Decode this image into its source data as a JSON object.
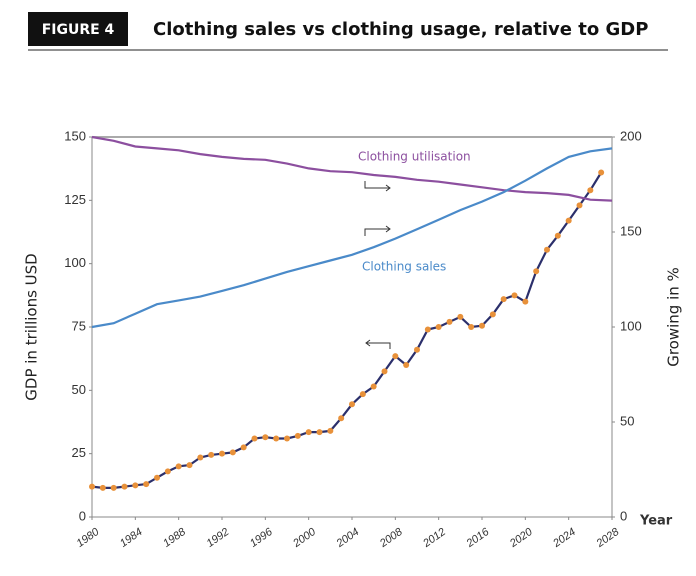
{
  "chart_data": {
    "type": "line",
    "label": "FIGURE 4",
    "title": "Clothing sales vs clothing usage, relative to GDP",
    "xlabel": "Year",
    "ylabel": "GDP in trillions USD",
    "y2label": "Growing in %",
    "xlim": [
      1980,
      2028
    ],
    "xticks": [
      1980,
      1984,
      1988,
      1992,
      1996,
      2000,
      2004,
      2008,
      2012,
      2016,
      2020,
      2024,
      2028
    ],
    "ylim": [
      0,
      150
    ],
    "yticks": [
      0,
      25,
      50,
      75,
      100,
      125,
      150
    ],
    "y2lim": [
      0,
      200
    ],
    "y2ticks": [
      0,
      50,
      100,
      150,
      200
    ],
    "series": [
      {
        "color": "#2b2f6b",
        "marker_color": "#e8913a",
        "x": [
          1980,
          1981,
          1982,
          1983,
          1984,
          1985,
          1986,
          1987,
          1988,
          1989,
          1990,
          1991,
          1992,
          1993,
          1994,
          1995,
          1996,
          1997,
          1998,
          1999,
          2000,
          2001,
          2002,
          2003,
          2004,
          2005,
          2006,
          2007,
          2008,
          2009,
          2010,
          2011,
          2012,
          2013,
          2014,
          2015,
          2016,
          2017,
          2018,
          2019,
          2020,
          2021,
          2022,
          2023,
          2024,
          2025,
          2026,
          2027
        ],
        "values": [
          12,
          11.5,
          11.5,
          12,
          12.5,
          13,
          15.5,
          18,
          20,
          20.5,
          23.5,
          24.5,
          25,
          25.5,
          27.5,
          31,
          31.5,
          31,
          31,
          32,
          33.5,
          33.5,
          34,
          39,
          44.5,
          48.5,
          51.5,
          57.5,
          63.5,
          60,
          66,
          74,
          75,
          77,
          79,
          75,
          75.5,
          80,
          86,
          87.5,
          85,
          97,
          105.5,
          111,
          117,
          123,
          129,
          136
        ]
      },
      {
        "name": "Clothing utilisation",
        "color": "#8c4f9f",
        "axis": "y2",
        "x": [
          1980,
          1982,
          1984,
          1986,
          1988,
          1990,
          1992,
          1994,
          1996,
          1998,
          2000,
          2002,
          2004,
          2006,
          2008,
          2010,
          2012,
          2014,
          2016,
          2018,
          2020,
          2022,
          2024,
          2026,
          2028
        ],
        "values": [
          200,
          198,
          195,
          194,
          193,
          191,
          189.5,
          188.5,
          188,
          186,
          183.5,
          182,
          181.5,
          180,
          179,
          177.5,
          176.5,
          175,
          173.5,
          172,
          171,
          170.5,
          169.5,
          167,
          166.5
        ]
      },
      {
        "name": "Clothing sales",
        "color": "#4a8ac9",
        "axis": "y2",
        "x": [
          1980,
          1982,
          1984,
          1986,
          1988,
          1990,
          1992,
          1994,
          1996,
          1998,
          2000,
          2002,
          2004,
          2006,
          2008,
          2010,
          2012,
          2014,
          2016,
          2018,
          2020,
          2022,
          2024,
          2026,
          2028
        ],
        "values": [
          100,
          102,
          107,
          112,
          114,
          116,
          119,
          122,
          125.5,
          129,
          132,
          135,
          138,
          142,
          146.5,
          151.5,
          156.5,
          161.5,
          166,
          171,
          177,
          183.5,
          189.5,
          192.5,
          194
        ]
      }
    ]
  }
}
